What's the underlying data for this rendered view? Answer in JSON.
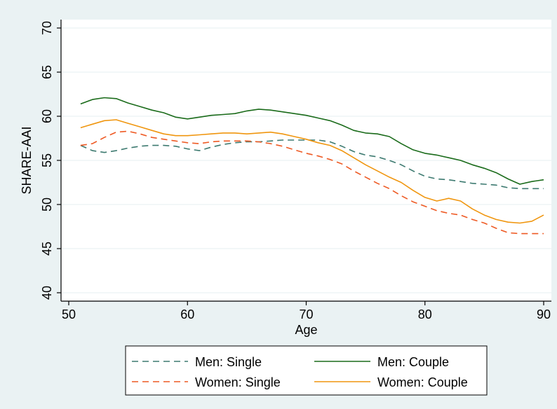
{
  "chart_data": {
    "type": "line",
    "xlabel": "Age",
    "ylabel": "SHARE-AAI",
    "xlim": [
      50,
      90
    ],
    "ylim": [
      40,
      70
    ],
    "xticks": [
      50,
      60,
      70,
      80,
      90
    ],
    "yticks": [
      40,
      45,
      50,
      55,
      60,
      65,
      70
    ],
    "grid": "horizontal",
    "legend_position": "bottom",
    "colors": {
      "plot_background": "#ffffff",
      "figure_background": "#eaf2f3",
      "grid": "#eaf2f3"
    },
    "series": [
      {
        "name": "Men: Single",
        "color": "#3d7a70",
        "dash": "dashed",
        "x": [
          51,
          52,
          53,
          54,
          55,
          56,
          57,
          58,
          59,
          60,
          61,
          62,
          63,
          64,
          65,
          66,
          67,
          68,
          69,
          70,
          71,
          72,
          73,
          74,
          75,
          76,
          77,
          78,
          79,
          80,
          81,
          82,
          83,
          84,
          85,
          86,
          87,
          88,
          89,
          90
        ],
        "values": [
          56.7,
          56.1,
          55.9,
          56.1,
          56.4,
          56.6,
          56.7,
          56.7,
          56.6,
          56.3,
          56.1,
          56.5,
          56.8,
          57.0,
          57.1,
          57.1,
          57.2,
          57.3,
          57.3,
          57.3,
          57.3,
          57.1,
          56.6,
          56.0,
          55.6,
          55.4,
          55.0,
          54.5,
          53.8,
          53.2,
          52.9,
          52.8,
          52.6,
          52.4,
          52.3,
          52.2,
          51.9,
          51.8,
          51.8,
          51.8
        ]
      },
      {
        "name": "Men: Couple",
        "color": "#1a6b1a",
        "dash": "solid",
        "x": [
          51,
          52,
          53,
          54,
          55,
          56,
          57,
          58,
          59,
          60,
          61,
          62,
          63,
          64,
          65,
          66,
          67,
          68,
          69,
          70,
          71,
          72,
          73,
          74,
          75,
          76,
          77,
          78,
          79,
          80,
          81,
          82,
          83,
          84,
          85,
          86,
          87,
          88,
          89,
          90
        ],
        "values": [
          61.4,
          61.9,
          62.1,
          62.0,
          61.5,
          61.1,
          60.7,
          60.4,
          59.9,
          59.7,
          59.9,
          60.1,
          60.2,
          60.3,
          60.6,
          60.8,
          60.7,
          60.5,
          60.3,
          60.1,
          59.8,
          59.5,
          59.0,
          58.4,
          58.1,
          58.0,
          57.7,
          56.9,
          56.2,
          55.8,
          55.6,
          55.3,
          55.0,
          54.5,
          54.1,
          53.6,
          52.9,
          52.3,
          52.6,
          52.8
        ]
      },
      {
        "name": "Women: Single",
        "color": "#ee5a24",
        "dash": "dashed",
        "x": [
          51,
          52,
          53,
          54,
          55,
          56,
          57,
          58,
          59,
          60,
          61,
          62,
          63,
          64,
          65,
          66,
          67,
          68,
          69,
          70,
          71,
          72,
          73,
          74,
          75,
          76,
          77,
          78,
          79,
          80,
          81,
          82,
          83,
          84,
          85,
          86,
          87,
          88,
          89,
          90
        ],
        "values": [
          56.7,
          56.9,
          57.6,
          58.2,
          58.3,
          58.0,
          57.6,
          57.4,
          57.2,
          57.0,
          56.9,
          57.1,
          57.2,
          57.2,
          57.2,
          57.1,
          56.9,
          56.6,
          56.2,
          55.8,
          55.5,
          55.1,
          54.6,
          53.8,
          53.1,
          52.4,
          51.8,
          51.0,
          50.3,
          49.8,
          49.3,
          49.0,
          48.8,
          48.3,
          47.9,
          47.3,
          46.8,
          46.7,
          46.7,
          46.7
        ]
      },
      {
        "name": "Women: Couple",
        "color": "#f0960f",
        "dash": "solid",
        "x": [
          51,
          52,
          53,
          54,
          55,
          56,
          57,
          58,
          59,
          60,
          61,
          62,
          63,
          64,
          65,
          66,
          67,
          68,
          69,
          70,
          71,
          72,
          73,
          74,
          75,
          76,
          77,
          78,
          79,
          80,
          81,
          82,
          83,
          84,
          85,
          86,
          87,
          88,
          89,
          90
        ],
        "values": [
          58.7,
          59.1,
          59.5,
          59.6,
          59.2,
          58.8,
          58.4,
          58.0,
          57.8,
          57.8,
          57.9,
          58.0,
          58.1,
          58.1,
          58.0,
          58.1,
          58.2,
          58.0,
          57.7,
          57.4,
          57.0,
          56.7,
          56.1,
          55.3,
          54.5,
          53.8,
          53.1,
          52.5,
          51.6,
          50.8,
          50.4,
          50.7,
          50.4,
          49.5,
          48.8,
          48.3,
          48.0,
          47.9,
          48.1,
          48.8
        ]
      }
    ]
  }
}
